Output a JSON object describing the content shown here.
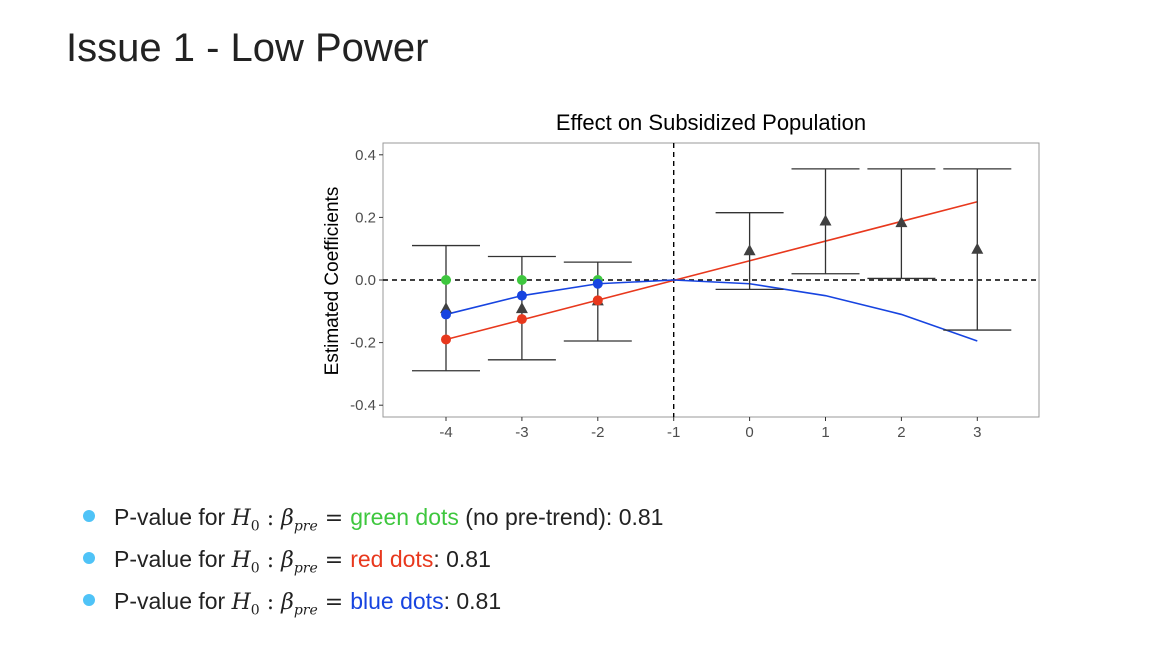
{
  "slide": {
    "title": "Issue 1 - Low Power"
  },
  "bullets": [
    {
      "prefix": "P-value for ",
      "math_h": "H",
      "math_h_sub": "0",
      "math_colon": " : ",
      "math_beta": "β",
      "math_beta_sub": "pre",
      "math_eq": " = ",
      "highlight": "green dots",
      "highlight_color": "#3ec73e",
      "suffix": " (no pre-trend): 0.81"
    },
    {
      "prefix": "P-value for ",
      "math_h": "H",
      "math_h_sub": "0",
      "math_colon": " : ",
      "math_beta": "β",
      "math_beta_sub": "pre",
      "math_eq": " = ",
      "highlight": "red dots",
      "highlight_color": "#e8381d",
      "suffix": ": 0.81"
    },
    {
      "prefix": "P-value for ",
      "math_h": "H",
      "math_h_sub": "0",
      "math_colon": " : ",
      "math_beta": "β",
      "math_beta_sub": "pre",
      "math_eq": " = ",
      "highlight": "blue dots",
      "highlight_color": "#1744e0",
      "suffix": ": 0.81"
    }
  ],
  "bullet_icon": "bullet-dot",
  "bullet_color": "#4fc3f7",
  "chart_data": {
    "type": "scatter",
    "title": "Effect on Subsidized Population",
    "ylabel": "Estimated Coefficients",
    "xlabel": "",
    "x_ticks": [
      -4,
      -3,
      -2,
      -1,
      0,
      1,
      2,
      3
    ],
    "y_ticks": [
      0.4,
      0.2,
      0.0,
      -0.2,
      -0.4
    ],
    "y_tick_labels": [
      "0.4",
      "0.2",
      "0.0",
      "-0.2",
      "-0.4"
    ],
    "x_tick_labels": [
      "-4",
      "-3",
      "-2",
      "-1",
      "0",
      "1",
      "2",
      "3"
    ],
    "xlim": [
      -5.0,
      3.5
    ],
    "ylim": [
      -0.43,
      0.43
    ],
    "grid": false,
    "reference_lines": {
      "horizontal_y": 0.0,
      "vertical_x": -1,
      "style": "dashed"
    },
    "estimates": {
      "name": "",
      "marker": "triangle",
      "color": "#404040",
      "points": [
        {
          "x": -4,
          "y": -0.09,
          "ci_low": -0.29,
          "ci_high": 0.11
        },
        {
          "x": -3,
          "y": -0.09,
          "ci_low": -0.255,
          "ci_high": 0.075
        },
        {
          "x": -2,
          "y": -0.065,
          "ci_low": -0.195,
          "ci_high": 0.057
        },
        {
          "x": 0,
          "y": 0.095,
          "ci_low": -0.03,
          "ci_high": 0.215
        },
        {
          "x": 1,
          "y": 0.19,
          "ci_low": 0.02,
          "ci_high": 0.355
        },
        {
          "x": 2,
          "y": 0.185,
          "ci_low": 0.005,
          "ci_high": 0.355
        },
        {
          "x": 3,
          "y": 0.1,
          "ci_low": -0.16,
          "ci_high": 0.355
        }
      ]
    },
    "series": [
      {
        "color": "#3ec73e",
        "marker": "dot",
        "line": false,
        "x": [
          -4,
          -3,
          -2
        ],
        "y": [
          0.0,
          0.0,
          0.0
        ]
      },
      {
        "color": "#e8381d",
        "marker": "dot",
        "line": true,
        "x": [
          -4,
          -3,
          -2
        ],
        "y": [
          -0.19,
          -0.125,
          -0.065
        ],
        "line_x": [
          -4,
          3
        ],
        "line_y": [
          -0.19,
          0.25
        ]
      },
      {
        "color": "#1744e0",
        "marker": "dot",
        "line": true,
        "x": [
          -4,
          -3,
          -2
        ],
        "y": [
          -0.11,
          -0.05,
          -0.012
        ],
        "line_x": [
          -4,
          -3,
          -2,
          -1,
          0,
          1,
          2,
          3
        ],
        "line_y": [
          -0.11,
          -0.05,
          -0.012,
          0.0,
          -0.012,
          -0.05,
          -0.11,
          -0.195
        ]
      }
    ]
  }
}
